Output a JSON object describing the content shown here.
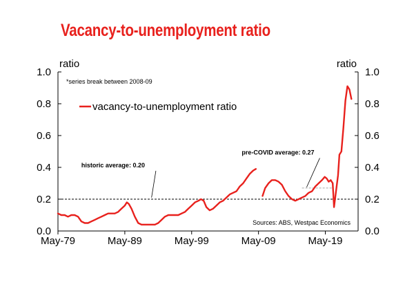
{
  "chart_data": {
    "type": "line",
    "title": "Vacancy-to-unemployment ratio",
    "left_axis_label": "ratio",
    "right_axis_label": "ratio",
    "ylim": [
      0,
      1.0
    ],
    "y_ticks": [
      "0.0",
      "0.2",
      "0.4",
      "0.6",
      "0.8",
      "1.0"
    ],
    "x_ticks": [
      "May-79",
      "May-89",
      "May-99",
      "May-09",
      "May-19"
    ],
    "series_break_note": "*series break between 2008-09",
    "source": "Sources: ABS, Westpac Economics",
    "legend_position": "upper-left",
    "color": "#e8211d",
    "series": [
      {
        "name": "vacancy-to-unemployment ratio",
        "segments": [
          [
            [
              1979.0,
              0.11
            ],
            [
              1979.5,
              0.1
            ],
            [
              1980.0,
              0.1
            ],
            [
              1980.5,
              0.09
            ],
            [
              1981.0,
              0.1
            ],
            [
              1981.5,
              0.1
            ],
            [
              1982.0,
              0.09
            ],
            [
              1982.5,
              0.06
            ],
            [
              1983.0,
              0.05
            ],
            [
              1983.5,
              0.05
            ],
            [
              1984.0,
              0.06
            ],
            [
              1984.5,
              0.07
            ],
            [
              1985.0,
              0.08
            ],
            [
              1985.5,
              0.09
            ],
            [
              1986.0,
              0.1
            ],
            [
              1986.5,
              0.11
            ],
            [
              1987.0,
              0.11
            ],
            [
              1987.5,
              0.11
            ],
            [
              1988.0,
              0.12
            ],
            [
              1988.5,
              0.14
            ],
            [
              1989.0,
              0.16
            ],
            [
              1989.3,
              0.18
            ],
            [
              1989.6,
              0.17
            ],
            [
              1990.0,
              0.14
            ],
            [
              1990.5,
              0.09
            ],
            [
              1991.0,
              0.05
            ],
            [
              1991.5,
              0.04
            ],
            [
              1992.0,
              0.04
            ],
            [
              1992.5,
              0.04
            ],
            [
              1993.0,
              0.04
            ],
            [
              1993.5,
              0.04
            ],
            [
              1994.0,
              0.05
            ],
            [
              1994.5,
              0.07
            ],
            [
              1995.0,
              0.09
            ],
            [
              1995.5,
              0.1
            ],
            [
              1996.0,
              0.1
            ],
            [
              1996.5,
              0.1
            ],
            [
              1997.0,
              0.1
            ],
            [
              1997.5,
              0.11
            ],
            [
              1998.0,
              0.12
            ],
            [
              1998.5,
              0.14
            ],
            [
              1999.0,
              0.16
            ],
            [
              1999.5,
              0.18
            ],
            [
              2000.0,
              0.19
            ],
            [
              2000.4,
              0.2
            ],
            [
              2000.8,
              0.19
            ],
            [
              2001.2,
              0.15
            ],
            [
              2001.7,
              0.13
            ],
            [
              2002.2,
              0.14
            ],
            [
              2002.7,
              0.16
            ],
            [
              2003.2,
              0.18
            ],
            [
              2003.7,
              0.19
            ],
            [
              2004.2,
              0.21
            ],
            [
              2004.7,
              0.23
            ],
            [
              2005.2,
              0.24
            ],
            [
              2005.7,
              0.25
            ],
            [
              2006.2,
              0.28
            ],
            [
              2006.7,
              0.3
            ],
            [
              2007.2,
              0.33
            ],
            [
              2007.7,
              0.36
            ],
            [
              2008.2,
              0.38
            ],
            [
              2008.6,
              0.39
            ]
          ],
          [
            [
              2009.6,
              0.22
            ],
            [
              2010.0,
              0.27
            ],
            [
              2010.5,
              0.3
            ],
            [
              2011.0,
              0.32
            ],
            [
              2011.5,
              0.32
            ],
            [
              2012.0,
              0.31
            ],
            [
              2012.5,
              0.29
            ],
            [
              2013.0,
              0.25
            ],
            [
              2013.5,
              0.22
            ],
            [
              2014.0,
              0.2
            ],
            [
              2014.5,
              0.19
            ],
            [
              2015.0,
              0.2
            ],
            [
              2015.5,
              0.21
            ],
            [
              2016.0,
              0.22
            ],
            [
              2016.5,
              0.24
            ],
            [
              2017.0,
              0.25
            ],
            [
              2017.5,
              0.28
            ],
            [
              2018.0,
              0.3
            ],
            [
              2018.5,
              0.32
            ],
            [
              2018.9,
              0.34
            ],
            [
              2019.2,
              0.33
            ],
            [
              2019.5,
              0.31
            ],
            [
              2019.8,
              0.32
            ],
            [
              2020.1,
              0.3
            ],
            [
              2020.3,
              0.15
            ],
            [
              2020.6,
              0.25
            ],
            [
              2020.9,
              0.35
            ],
            [
              2021.1,
              0.48
            ],
            [
              2021.4,
              0.5
            ],
            [
              2021.7,
              0.65
            ],
            [
              2022.0,
              0.82
            ],
            [
              2022.3,
              0.91
            ],
            [
              2022.6,
              0.89
            ],
            [
              2022.9,
              0.83
            ]
          ]
        ]
      }
    ],
    "reference_lines": [
      {
        "name": "historic average",
        "value": 0.2,
        "style": "dashed",
        "from_x": 1979.0,
        "to_x": 2023.3,
        "label": "historic average: 0.20",
        "label_anchor": [
          1982.5,
          0.4
        ],
        "pointer_to": [
          1993.0,
          0.21
        ]
      },
      {
        "name": "pre-COVID average",
        "value": 0.27,
        "style": "dashed",
        "color": "#a8a8a8",
        "from_x": 2015.5,
        "to_x": 2020.2,
        "label": "pre-COVID average: 0.27",
        "label_anchor": [
          2006.5,
          0.48
        ],
        "pointer_to": [
          2016.2,
          0.275
        ]
      }
    ]
  }
}
